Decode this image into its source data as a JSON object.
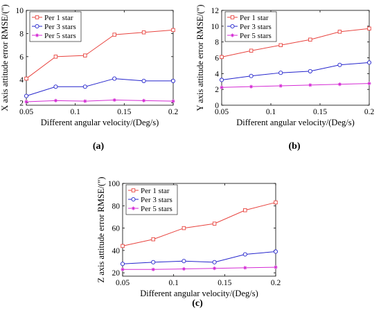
{
  "colors": {
    "per1": "#e8433e",
    "per3": "#2323cc",
    "per5": "#d42ad4",
    "axis": "#000000"
  },
  "chart_data": [
    {
      "type": "line",
      "panel_label": "(a)",
      "xlabel": "Different angular velocity/(Deg/s)",
      "ylabel": "X axis attitude error RMSE/(\")",
      "x": [
        0.05,
        0.08,
        0.11,
        0.14,
        0.17,
        0.2
      ],
      "xlim": [
        0.05,
        0.2
      ],
      "ylim": [
        1.8,
        10
      ],
      "xticks": [
        0.05,
        0.1,
        0.15,
        0.2
      ],
      "xtick_labels": [
        "0.05",
        "0.1",
        "0.15",
        "0.2"
      ],
      "yticks": [
        2,
        4,
        6,
        8,
        10
      ],
      "ytick_labels": [
        "2",
        "4",
        "6",
        "8",
        "10"
      ],
      "legend_position": "top-left",
      "grid": false,
      "series": [
        {
          "name": "Per 1 star",
          "color_key": "per1",
          "marker": "square",
          "values": [
            4.1,
            6.0,
            6.1,
            7.9,
            8.1,
            8.3
          ]
        },
        {
          "name": "Per 3 stars",
          "color_key": "per3",
          "marker": "circle",
          "values": [
            2.6,
            3.4,
            3.4,
            4.1,
            3.9,
            3.9
          ]
        },
        {
          "name": "Per 5 stars",
          "color_key": "per5",
          "marker": "star",
          "values": [
            2.1,
            2.2,
            2.15,
            2.25,
            2.2,
            2.15
          ]
        }
      ]
    },
    {
      "type": "line",
      "panel_label": "(b)",
      "xlabel": "Different angular velocity/(Deg/s)",
      "ylabel": "Y axis attitude error RMSE/(\")",
      "x": [
        0.05,
        0.08,
        0.11,
        0.14,
        0.17,
        0.2
      ],
      "xlim": [
        0.05,
        0.2
      ],
      "ylim": [
        0,
        12
      ],
      "xticks": [
        0.05,
        0.1,
        0.15,
        0.2
      ],
      "xtick_labels": [
        "0.05",
        "0.1",
        "0.15",
        "0.2"
      ],
      "yticks": [
        0,
        2,
        4,
        6,
        8,
        10,
        12
      ],
      "ytick_labels": [
        "0",
        "2",
        "4",
        "6",
        "8",
        "10",
        "12"
      ],
      "legend_position": "top-left",
      "grid": false,
      "series": [
        {
          "name": "Per 1 star",
          "color_key": "per1",
          "marker": "square",
          "values": [
            6.1,
            6.9,
            7.6,
            8.3,
            9.3,
            9.7
          ]
        },
        {
          "name": "Per 3 stars",
          "color_key": "per3",
          "marker": "circle",
          "values": [
            3.2,
            3.7,
            4.1,
            4.3,
            5.1,
            5.4
          ]
        },
        {
          "name": "Per 5 stars",
          "color_key": "per5",
          "marker": "star",
          "values": [
            2.25,
            2.35,
            2.45,
            2.55,
            2.65,
            2.75
          ]
        }
      ]
    },
    {
      "type": "line",
      "panel_label": "(c)",
      "xlabel": "Different angular velocity/(Deg/s)",
      "ylabel": "Z axis attitude error RMSE/(\")",
      "x": [
        0.05,
        0.08,
        0.11,
        0.14,
        0.17,
        0.2
      ],
      "xlim": [
        0.05,
        0.2
      ],
      "ylim": [
        17,
        100
      ],
      "xticks": [
        0.05,
        0.1,
        0.15,
        0.2
      ],
      "xtick_labels": [
        "0.05",
        "0.1",
        "0.15",
        "0.2"
      ],
      "yticks": [
        20,
        40,
        60,
        80,
        100
      ],
      "ytick_labels": [
        "20",
        "40",
        "60",
        "80",
        "100"
      ],
      "legend_position": "top-left",
      "grid": false,
      "series": [
        {
          "name": "Per 1 star",
          "color_key": "per1",
          "marker": "square",
          "values": [
            44,
            50,
            60,
            64,
            76,
            83
          ]
        },
        {
          "name": "Per 3 stars",
          "color_key": "per3",
          "marker": "circle",
          "values": [
            28,
            29.5,
            30.5,
            29.5,
            36.5,
            39
          ]
        },
        {
          "name": "Per 5 stars",
          "color_key": "per5",
          "marker": "star",
          "values": [
            23,
            23,
            23.5,
            24,
            24.5,
            25
          ]
        }
      ]
    }
  ]
}
